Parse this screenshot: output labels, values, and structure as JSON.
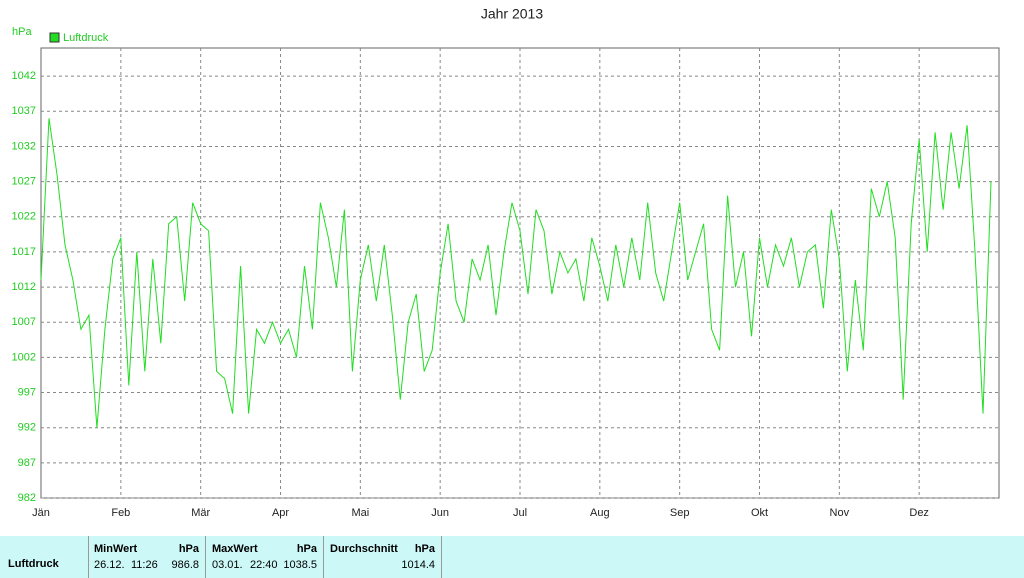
{
  "chart_data": {
    "type": "line",
    "title": "Jahr 2013",
    "y_unit": "hPa",
    "categories": [
      "Jän",
      null,
      null,
      null,
      null,
      null,
      null,
      null,
      null,
      null,
      "Feb",
      null,
      null,
      null,
      null,
      null,
      null,
      null,
      null,
      null,
      "Mär",
      null,
      null,
      null,
      null,
      null,
      null,
      null,
      null,
      null,
      "Apr",
      null,
      null,
      null,
      null,
      null,
      null,
      null,
      null,
      null,
      "Mai",
      null,
      null,
      null,
      null,
      null,
      null,
      null,
      null,
      null,
      "Jun",
      null,
      null,
      null,
      null,
      null,
      null,
      null,
      null,
      null,
      "Jul",
      null,
      null,
      null,
      null,
      null,
      null,
      null,
      null,
      null,
      "Aug",
      null,
      null,
      null,
      null,
      null,
      null,
      null,
      null,
      null,
      "Sep",
      null,
      null,
      null,
      null,
      null,
      null,
      null,
      null,
      null,
      "Okt",
      null,
      null,
      null,
      null,
      null,
      null,
      null,
      null,
      null,
      "Nov",
      null,
      null,
      null,
      null,
      null,
      null,
      null,
      null,
      null,
      "Dez",
      null,
      null,
      null,
      null,
      null,
      null,
      null,
      null,
      null
    ],
    "series": [
      {
        "name": "Luftdruck",
        "color": "#22dd22",
        "values": [
          1013,
          1036,
          1028,
          1018,
          1013,
          1006,
          1008,
          992,
          1006,
          1016,
          1019,
          998,
          1017,
          1000,
          1016,
          1004,
          1021,
          1022,
          1010,
          1024,
          1021,
          1020,
          1000,
          999,
          994,
          1015,
          994,
          1006,
          1004,
          1007,
          1004,
          1006,
          1002,
          1015,
          1006,
          1024,
          1019,
          1012,
          1023,
          1000,
          1013,
          1018,
          1010,
          1018,
          1008,
          996,
          1007,
          1011,
          1000,
          1003,
          1014,
          1021,
          1010,
          1007,
          1016,
          1013,
          1018,
          1008,
          1017,
          1024,
          1020,
          1011,
          1023,
          1020,
          1011,
          1017,
          1014,
          1016,
          1010,
          1019,
          1015,
          1010,
          1018,
          1012,
          1019,
          1013,
          1024,
          1014,
          1010,
          1017,
          1024,
          1013,
          1017,
          1021,
          1006,
          1003,
          1025,
          1012,
          1017,
          1005,
          1019,
          1012,
          1018,
          1015,
          1019,
          1012,
          1017,
          1018,
          1009,
          1023,
          1016,
          1000,
          1013,
          1003,
          1026,
          1022,
          1027,
          1019,
          996,
          1021,
          1033,
          1017,
          1034,
          1023,
          1034,
          1026,
          1035,
          1017,
          994,
          1027
        ]
      }
    ],
    "ylim": [
      982,
      1046
    ],
    "yticks": [
      982,
      987,
      992,
      997,
      1002,
      1007,
      1012,
      1017,
      1022,
      1027,
      1032,
      1037,
      1042
    ],
    "grid": true
  },
  "table": {
    "columns": [
      {
        "name": "MinWert",
        "unit": "hPa"
      },
      {
        "name": "MaxWert",
        "unit": "hPa"
      },
      {
        "name": "Durchschnitt",
        "unit": "hPa"
      }
    ],
    "rows": [
      {
        "label": "Luftdruck",
        "cells": [
          {
            "date": "26.12.",
            "time": "11:26",
            "value": 986.8
          },
          {
            "date": "03.01.",
            "time": "22:40",
            "value": 1038.5
          },
          {
            "value": 1014.4
          }
        ]
      }
    ]
  }
}
